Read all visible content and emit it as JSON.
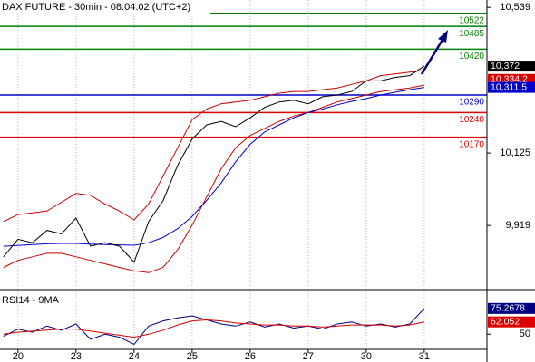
{
  "chart_data": [
    {
      "type": "line",
      "title": "DAX FUTURE - 30min - 08:04:02 (UTC+2)",
      "x": [
        -0.25,
        0,
        0.25,
        0.5,
        0.75,
        1,
        1.25,
        1.5,
        1.75,
        2,
        2.25,
        2.5,
        2.75,
        3,
        3.25,
        3.5,
        3.75,
        4,
        4.25,
        4.5,
        4.75,
        5,
        5.25,
        5.5,
        5.75,
        6,
        6.25,
        6.5,
        6.75,
        7
      ],
      "xlim": [
        -0.31,
        8.08
      ],
      "xticks": [
        {
          "value": 0,
          "label": "20"
        },
        {
          "value": 1,
          "label": "23"
        },
        {
          "value": 2,
          "label": "24"
        },
        {
          "value": 3,
          "label": "25"
        },
        {
          "value": 4,
          "label": "26"
        },
        {
          "value": 5,
          "label": "27"
        },
        {
          "value": 6,
          "label": "30"
        },
        {
          "value": 7,
          "label": "31"
        }
      ],
      "ylim": [
        9742,
        10560
      ],
      "yticks": [
        {
          "value": 10539,
          "label": "10,539"
        },
        {
          "value": 10125,
          "label": "10,125"
        },
        {
          "value": 9919,
          "label": "9,919"
        }
      ],
      "series": [
        {
          "color": "#cc0000",
          "values": [
            9930,
            9950,
            9955,
            9960,
            9985,
            10010,
            10005,
            9980,
            9960,
            9935,
            9980,
            10060,
            10140,
            10220,
            10250,
            10265,
            10270,
            10275,
            10285,
            10295,
            10300,
            10300,
            10305,
            10310,
            10320,
            10330,
            10345,
            10350,
            10355,
            10360
          ]
        },
        {
          "color": "#cc0000",
          "values": [
            9800,
            9820,
            9830,
            9840,
            9840,
            9830,
            9820,
            9810,
            9800,
            9790,
            9785,
            9800,
            9850,
            9920,
            10000,
            10080,
            10140,
            10175,
            10195,
            10215,
            10230,
            10240,
            10255,
            10270,
            10280,
            10290,
            10300,
            10305,
            10310,
            10318
          ]
        },
        {
          "color": "#0000cc",
          "values": [
            9860,
            9862,
            9865,
            9867,
            9868,
            9868,
            9866,
            9865,
            9864,
            9863,
            9870,
            9885,
            9910,
            9945,
            9990,
            10040,
            10100,
            10150,
            10185,
            10205,
            10225,
            10240,
            10250,
            10262,
            10272,
            10280,
            10290,
            10298,
            10305,
            10311.5
          ]
        },
        {
          "color": "#000000",
          "values": [
            9830,
            9880,
            9870,
            9905,
            9895,
            9940,
            9860,
            9870,
            9860,
            9815,
            9930,
            9990,
            10090,
            10165,
            10205,
            10215,
            10200,
            10225,
            10255,
            10270,
            10275,
            10265,
            10285,
            10290,
            10300,
            10330,
            10330,
            10340,
            10345,
            10372
          ]
        }
      ],
      "levels": [
        {
          "value": 10522,
          "color": "#008000"
        },
        {
          "value": 10485,
          "color": "#008000"
        },
        {
          "value": 10420,
          "color": "#008000"
        },
        {
          "value": 10290,
          "color": "#0000cc"
        },
        {
          "value": 10240,
          "color": "#dd0000"
        },
        {
          "value": 10170,
          "color": "#dd0000"
        }
      ],
      "tags": [
        {
          "value": 10372,
          "label": "10,372",
          "color": "#000000"
        },
        {
          "value": 10334.2,
          "label": "10,334.2",
          "color": "#dd0000"
        },
        {
          "value": 10311.5,
          "label": "10,311.5",
          "color": "#0000cc"
        }
      ]
    },
    {
      "type": "line",
      "title": "RSI14 - 9MA",
      "ylim": [
        36,
        92
      ],
      "yticks": [
        50
      ],
      "series": [
        {
          "color": "#000080",
          "values": [
            48,
            55,
            52,
            58,
            54,
            60,
            45,
            50,
            47,
            40,
            58,
            63,
            66,
            68,
            64,
            60,
            58,
            62,
            57,
            60,
            56,
            58,
            55,
            60,
            62,
            58,
            60,
            57,
            60,
            75.2678
          ]
        },
        {
          "color": "#dd0000",
          "values": [
            50,
            52,
            53,
            54,
            55,
            55,
            53,
            51,
            49,
            47,
            50,
            54,
            59,
            63,
            64,
            63,
            61,
            60,
            59,
            59,
            58,
            58,
            57,
            58,
            59,
            59,
            59,
            58,
            59,
            62.052
          ]
        }
      ],
      "tags": [
        {
          "value": 75.2678,
          "color": "#000080"
        },
        {
          "value": 62.052,
          "color": "#dd0000"
        }
      ]
    }
  ]
}
